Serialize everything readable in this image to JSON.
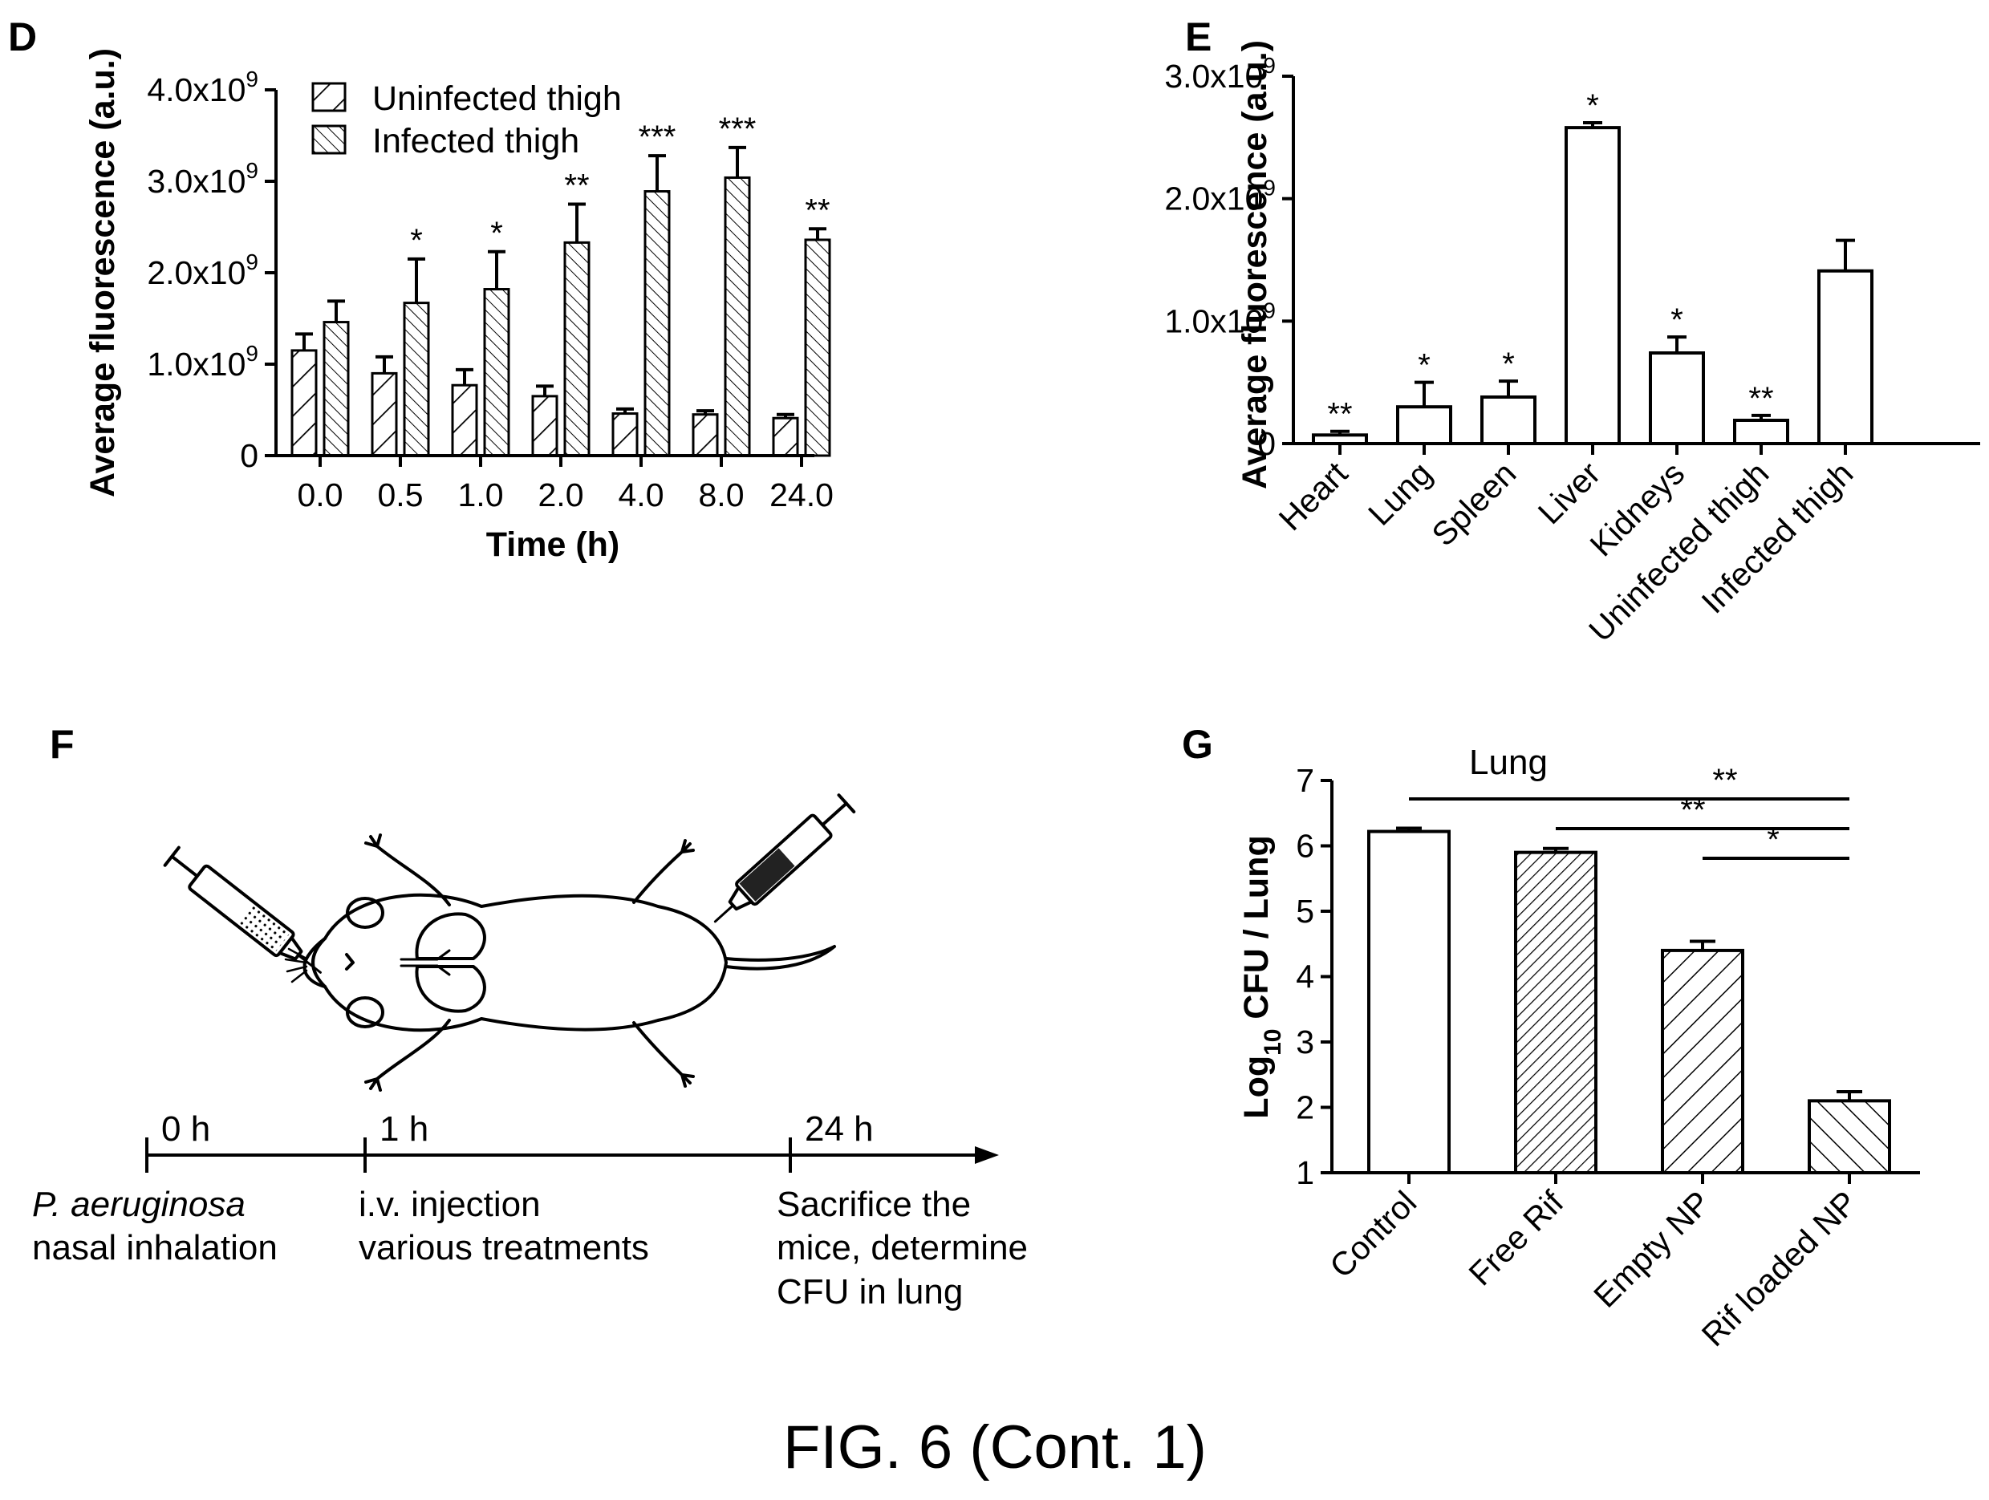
{
  "figure_caption": "FIG. 6 (Cont. 1)",
  "panels": {
    "D": "D",
    "E": "E",
    "F": "F",
    "G": "G"
  },
  "chart_data": [
    {
      "panel": "D",
      "type": "bar",
      "title": "",
      "xlabel": "Time (h)",
      "ylabel": "Average fluorescence (a.u.)",
      "ylim": [
        0,
        4000000000.0
      ],
      "yticks": [
        0,
        1000000000.0,
        2000000000.0,
        3000000000.0,
        4000000000.0
      ],
      "ytick_labels": [
        "0",
        "1.0x10",
        "2.0x10",
        "3.0x10",
        "4.0x10"
      ],
      "ytick_exp": "9",
      "categories": [
        "0.0",
        "0.5",
        "1.0",
        "2.0",
        "4.0",
        "8.0",
        "24.0"
      ],
      "legend_position": "top-left",
      "series": [
        {
          "name": "Uninfected thigh",
          "pattern": "backslash-hatch",
          "values": [
            1150000000.0,
            900000000.0,
            770000000.0,
            650000000.0,
            460000000.0,
            450000000.0,
            410000000.0
          ],
          "errors": [
            180000000.0,
            180000000.0,
            170000000.0,
            110000000.0,
            50000000.0,
            40000000.0,
            40000000.0
          ]
        },
        {
          "name": "Infected thigh",
          "pattern": "slash-hatch",
          "values": [
            1460000000.0,
            1670000000.0,
            1820000000.0,
            2330000000.0,
            2890000000.0,
            3040000000.0,
            2360000000.0
          ],
          "errors": [
            230000000.0,
            480000000.0,
            410000000.0,
            420000000.0,
            390000000.0,
            330000000.0,
            120000000.0
          ]
        }
      ],
      "significance": [
        "",
        "*",
        "*",
        "**",
        "***",
        "***",
        "**"
      ]
    },
    {
      "panel": "E",
      "type": "bar",
      "title": "",
      "xlabel": "",
      "ylabel": "Average fluorescence (a.u.)",
      "ylim": [
        0,
        3000000000.0
      ],
      "yticks": [
        0,
        1000000000.0,
        2000000000.0,
        3000000000.0
      ],
      "ytick_labels": [
        "0",
        "1.0x10",
        "2.0x10",
        "3.0x10"
      ],
      "ytick_exp": "9",
      "categories": [
        "Heart",
        "Lung",
        "Spleen",
        "Liver",
        "Kidneys",
        "Uninfected thigh",
        "Infected thigh"
      ],
      "values": [
        70000000.0,
        300000000.0,
        380000000.0,
        2580000000.0,
        740000000.0,
        190000000.0,
        1410000000.0
      ],
      "errors": [
        30000000.0,
        200000000.0,
        130000000.0,
        40000000.0,
        130000000.0,
        40000000.0,
        250000000.0
      ],
      "significance": [
        "**",
        "*",
        "*",
        "*",
        "*",
        "**",
        ""
      ]
    },
    {
      "panel": "G",
      "type": "bar",
      "title": "",
      "annotation": "Lung",
      "xlabel": "",
      "ylabel_main": "Log",
      "ylabel_sub": "10",
      "ylabel_rest": " CFU / Lung",
      "ylim": [
        1,
        7
      ],
      "yticks": [
        1,
        2,
        3,
        4,
        5,
        6,
        7
      ],
      "categories": [
        "Control",
        "Free Rif",
        "Empty NP",
        "Rif loaded NP"
      ],
      "patterns": [
        "none",
        "dense-backslash",
        "backslash",
        "slash"
      ],
      "values": [
        6.22,
        5.9,
        4.4,
        2.1
      ],
      "errors": [
        0.05,
        0.06,
        0.14,
        0.14
      ],
      "comparisons": [
        {
          "from": "Control",
          "to": "Rif loaded NP",
          "label": "**"
        },
        {
          "from": "Free Rif",
          "to": "Rif loaded NP",
          "label": "**"
        },
        {
          "from": "Empty NP",
          "to": "Rif loaded NP",
          "label": "*"
        }
      ]
    }
  ],
  "timeline": {
    "points": [
      {
        "tick": "0 h",
        "line1": "P. aeruginosa",
        "line2": "nasal inhalation",
        "line3": ""
      },
      {
        "tick": "1 h",
        "line1": "i.v. injection",
        "line2": "various treatments",
        "line3": ""
      },
      {
        "tick": "24 h",
        "line1": "Sacrifice the",
        "line2": "mice, determine",
        "line3": "CFU in lung"
      }
    ]
  }
}
